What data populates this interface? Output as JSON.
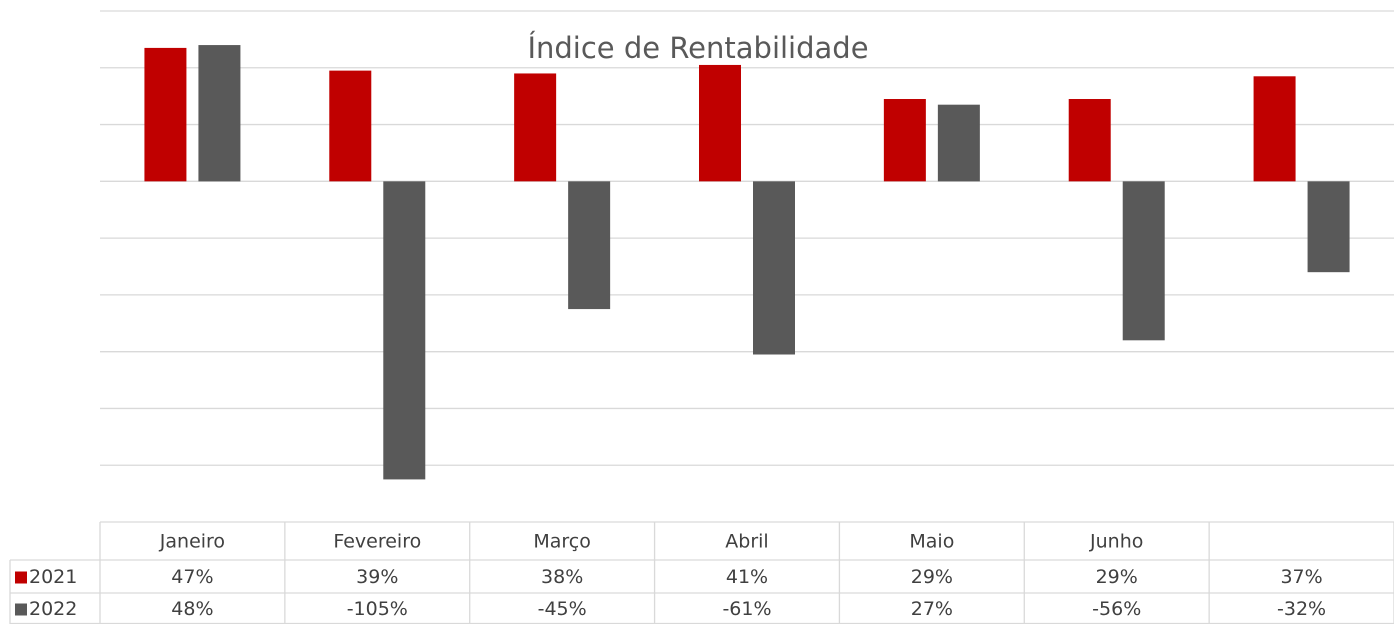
{
  "chart_data": {
    "type": "bar",
    "title": "Índice de Rentabilidade",
    "categories": [
      "Janeiro",
      "Fevereiro",
      "Março",
      "Abril",
      "Maio",
      "Junho",
      null
    ],
    "series": [
      {
        "name": "2021",
        "color": "#c00000",
        "values": [
          47,
          39,
          38,
          41,
          29,
          29,
          37
        ],
        "value_labels": [
          "47%",
          "39%",
          "38%",
          "41%",
          "29%",
          "29%",
          "37%"
        ]
      },
      {
        "name": "2022",
        "color": "#595959",
        "values": [
          48,
          -105,
          -45,
          -61,
          27,
          -56,
          -32
        ],
        "value_labels": [
          "48%",
          "-105%",
          "-45%",
          "-61%",
          "27%",
          "-56%",
          "-32%"
        ]
      }
    ],
    "ylim": [
      -120,
      60
    ],
    "yticks": [
      -100,
      -80,
      -60,
      -40,
      -20,
      0,
      20,
      40,
      60
    ],
    "grid": true
  }
}
